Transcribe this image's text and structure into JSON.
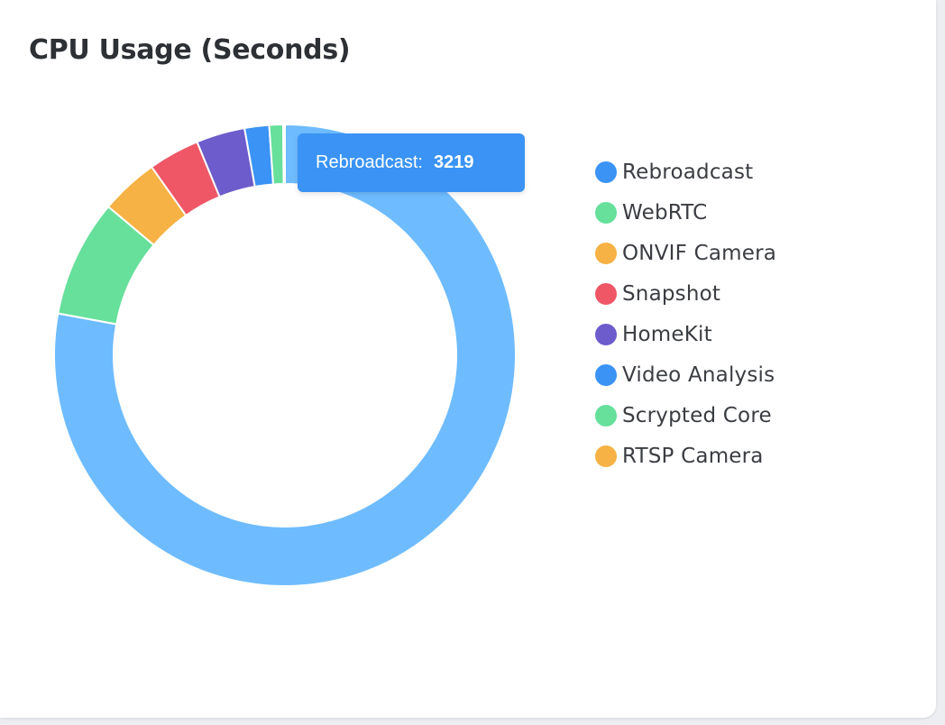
{
  "title": "CPU Usage (Seconds)",
  "tooltip": {
    "label": "Rebroadcast:",
    "value": "3219",
    "color": "#3a93f5"
  },
  "chart_data": {
    "type": "pie",
    "style": "doughnut",
    "title": "CPU Usage (Seconds)",
    "legend_position": "right",
    "series": [
      {
        "name": "CPU Usage (Seconds)",
        "values": [
          3219,
          340,
          168,
          148,
          141,
          71,
          40,
          5
        ]
      }
    ],
    "categories": [
      "Rebroadcast",
      "WebRTC",
      "ONVIF Camera",
      "Snapshot",
      "HomeKit",
      "Video Analysis",
      "Scrypted Core",
      "RTSP Camera"
    ],
    "legend_colors": [
      "#3a93f5",
      "#66e09b",
      "#f6b244",
      "#ef5767",
      "#6d5ccc",
      "#3a93f5",
      "#66e09b",
      "#f6b244"
    ],
    "slice_colors": [
      "#6ebcff",
      "#66e09b",
      "#f6b244",
      "#ef5767",
      "#6d5ccc",
      "#3a93f5",
      "#66e09b",
      "#f6b244"
    ],
    "highlighted": "Rebroadcast"
  }
}
